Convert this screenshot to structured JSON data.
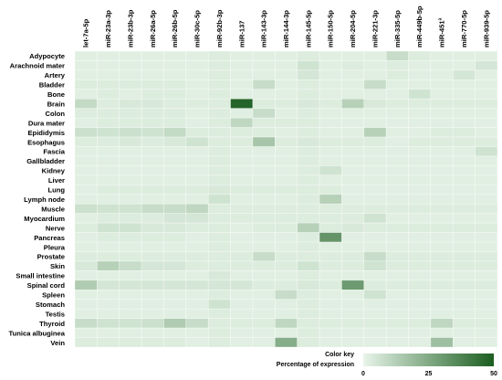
{
  "chart_data": {
    "type": "heatmap",
    "columns": [
      "let-7a-5p",
      "miR-23a-3p",
      "miR-23b-3p",
      "miR-26a-5p",
      "miR-26b-5p",
      "miR-30c-5p",
      "miR-92b-3p",
      "miR-137",
      "miR-143-3p",
      "miR-144-3p",
      "miR-145-5p",
      "miR-150-5p",
      "miR-204-5p",
      "miR-221-3p",
      "miR-335-5p",
      "miR-449b-5p",
      "miR-451ª",
      "miR-770-5p",
      "miR-939-5p"
    ],
    "rows": [
      "Adypocyte",
      "Arachnoid mater",
      "Artery",
      "Bladder",
      "Bone",
      "Brain",
      "Colon",
      "Dura mater",
      "Epididymis",
      "Esophagus",
      "Fascia",
      "Gallbladder",
      "Kidney",
      "Liver",
      "Lung",
      "Lymph node",
      "Muscle",
      "Myocardium",
      "Nerve",
      "Pancreas",
      "Pleura",
      "Prostate",
      "Skin",
      "Small intestine",
      "Spinal cord",
      "Spleen",
      "Stomach",
      "Testis",
      "Thyroid",
      "Tunica albuginea",
      "Vein"
    ],
    "values": [
      [
        2,
        2,
        2,
        2,
        2,
        2,
        3,
        2,
        2,
        2,
        3,
        2,
        2,
        2,
        8,
        3,
        2,
        2,
        2
      ],
      [
        2,
        2,
        2,
        2,
        2,
        2,
        3,
        2,
        2,
        2,
        6,
        2,
        3,
        2,
        3,
        2,
        2,
        2,
        5
      ],
      [
        2,
        2,
        2,
        2,
        2,
        2,
        3,
        2,
        2,
        2,
        5,
        2,
        2,
        2,
        3,
        2,
        2,
        5,
        2
      ],
      [
        3,
        3,
        3,
        3,
        3,
        2,
        3,
        2,
        8,
        2,
        3,
        2,
        2,
        8,
        2,
        2,
        2,
        2,
        2
      ],
      [
        2,
        3,
        2,
        3,
        3,
        2,
        3,
        2,
        2,
        2,
        3,
        2,
        2,
        2,
        2,
        6,
        2,
        2,
        2
      ],
      [
        9,
        3,
        4,
        4,
        3,
        3,
        3,
        48,
        3,
        3,
        4,
        3,
        12,
        4,
        3,
        3,
        3,
        3,
        3
      ],
      [
        3,
        3,
        3,
        3,
        3,
        2,
        3,
        2,
        8,
        2,
        3,
        2,
        2,
        2,
        2,
        2,
        2,
        2,
        2
      ],
      [
        2,
        3,
        3,
        3,
        3,
        2,
        3,
        10,
        3,
        3,
        3,
        2,
        2,
        2,
        2,
        2,
        2,
        2,
        2
      ],
      [
        7,
        6,
        7,
        6,
        9,
        3,
        3,
        3,
        3,
        2,
        3,
        2,
        2,
        12,
        2,
        2,
        3,
        3,
        2
      ],
      [
        3,
        3,
        4,
        3,
        4,
        6,
        3,
        3,
        16,
        3,
        4,
        3,
        3,
        3,
        2,
        3,
        3,
        3,
        3
      ],
      [
        2,
        2,
        2,
        2,
        2,
        2,
        3,
        2,
        2,
        2,
        3,
        2,
        2,
        2,
        2,
        2,
        2,
        2,
        6
      ],
      [
        2,
        2,
        2,
        2,
        2,
        2,
        3,
        2,
        2,
        2,
        3,
        2,
        2,
        2,
        2,
        2,
        2,
        2,
        2
      ],
      [
        2,
        2,
        2,
        2,
        2,
        2,
        3,
        2,
        2,
        2,
        3,
        6,
        2,
        2,
        2,
        2,
        2,
        2,
        2
      ],
      [
        2,
        2,
        2,
        2,
        2,
        2,
        3,
        2,
        2,
        2,
        3,
        2,
        2,
        2,
        2,
        2,
        2,
        2,
        2
      ],
      [
        2,
        3,
        3,
        3,
        3,
        3,
        4,
        3,
        3,
        3,
        3,
        3,
        2,
        2,
        2,
        2,
        2,
        2,
        2
      ],
      [
        2,
        2,
        2,
        2,
        2,
        2,
        6,
        2,
        2,
        2,
        3,
        12,
        2,
        2,
        2,
        2,
        2,
        2,
        2
      ],
      [
        7,
        6,
        6,
        8,
        8,
        10,
        3,
        3,
        3,
        3,
        3,
        3,
        3,
        3,
        3,
        3,
        3,
        3,
        3
      ],
      [
        2,
        3,
        3,
        3,
        5,
        5,
        3,
        3,
        3,
        3,
        3,
        3,
        3,
        6,
        2,
        2,
        2,
        2,
        2
      ],
      [
        3,
        6,
        6,
        4,
        4,
        3,
        3,
        2,
        3,
        3,
        12,
        3,
        4,
        3,
        3,
        3,
        3,
        3,
        3
      ],
      [
        2,
        3,
        3,
        3,
        3,
        2,
        3,
        2,
        2,
        2,
        3,
        32,
        2,
        2,
        2,
        2,
        2,
        2,
        2
      ],
      [
        2,
        2,
        2,
        2,
        2,
        2,
        3,
        2,
        2,
        2,
        3,
        2,
        2,
        2,
        2,
        2,
        2,
        2,
        2
      ],
      [
        3,
        3,
        3,
        3,
        3,
        3,
        3,
        3,
        8,
        3,
        3,
        3,
        3,
        8,
        3,
        3,
        3,
        3,
        3
      ],
      [
        4,
        12,
        8,
        5,
        5,
        3,
        3,
        3,
        3,
        3,
        6,
        3,
        3,
        6,
        3,
        3,
        3,
        3,
        3
      ],
      [
        2,
        2,
        2,
        2,
        2,
        2,
        4,
        2,
        2,
        2,
        3,
        2,
        2,
        2,
        2,
        2,
        2,
        2,
        2
      ],
      [
        14,
        5,
        5,
        5,
        5,
        5,
        5,
        5,
        3,
        3,
        4,
        3,
        30,
        3,
        3,
        3,
        3,
        3,
        3
      ],
      [
        2,
        2,
        2,
        2,
        2,
        2,
        3,
        2,
        2,
        8,
        3,
        2,
        2,
        6,
        2,
        2,
        2,
        2,
        2
      ],
      [
        2,
        2,
        2,
        2,
        2,
        2,
        6,
        2,
        2,
        2,
        3,
        2,
        2,
        2,
        2,
        2,
        2,
        2,
        2
      ],
      [
        2,
        2,
        2,
        2,
        2,
        2,
        3,
        2,
        2,
        2,
        3,
        2,
        2,
        2,
        2,
        2,
        2,
        2,
        2
      ],
      [
        8,
        6,
        6,
        7,
        14,
        8,
        3,
        3,
        3,
        10,
        3,
        3,
        3,
        3,
        3,
        3,
        10,
        3,
        3
      ],
      [
        2,
        2,
        2,
        2,
        2,
        2,
        3,
        2,
        2,
        2,
        3,
        2,
        2,
        2,
        2,
        2,
        2,
        2,
        2
      ],
      [
        3,
        3,
        3,
        3,
        3,
        2,
        3,
        2,
        2,
        24,
        3,
        2,
        2,
        2,
        2,
        2,
        18,
        2,
        2
      ]
    ],
    "color_key": {
      "title": "Color key",
      "subtitle": "Percentage of expression",
      "ticks": [
        0,
        25,
        50
      ],
      "min": 0,
      "max": 50,
      "color_low": "#e8f5e9",
      "color_high": "#1b5e20"
    },
    "grid": true
  }
}
